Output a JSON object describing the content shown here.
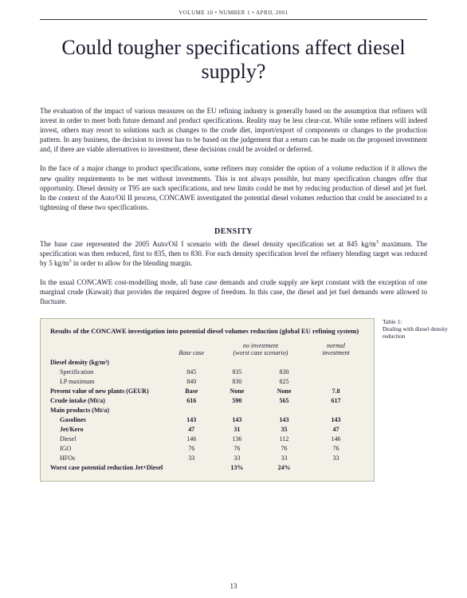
{
  "header": "VOLUME 10 • NUMBER 1 • APRIL 2001",
  "title": "Could tougher specifications affect diesel supply?",
  "para1": "The evaluation of the impact of various measures on the EU refining industry is generally based on the assumption that refiners will invest in order to meet both future demand and product specifications. Reality may be less clear-cut. While some refiners will indeed invest, others may resort to solutions such as changes to the crude diet, import/export of components or changes to the production pattern. In any business, the decision to invest has to be based on the judgement that a return can be made on the proposed investment and, if there are viable alternatives to investment, these decisions could be avoided or deferred.",
  "para2": "In the face of a major change to product specifications, some refiners may consider the option of a volume reduction if it allows the new quality requirements to be met without investments. This is not always possible, but many specification changes offer that opportunity. Diesel density or T95 are such specifications, and new limits could be met by reducing production of diesel and jet fuel. In the context of the Auto/Oil II process, CONCAWE investigated the potential diesel volumes reduction that could be associated to a tightening of these two specifications.",
  "section_head": "DENSITY",
  "para3_a": "The base case represented the 2005 Auto/Oil I scenario with the diesel density specification set at 845 kg/m",
  "para3_b": " maximum. The specification was then reduced, first to 835, then to 830. For each density specification level the refinery blending target was reduced by 5 kg/m",
  "para3_c": " in order to allow for the blending margin.",
  "para4": "In the usual CONCAWE cost-modelling mode, all base case demands and crude supply are kept constant with the exception of one marginal crude (Kuwait) that provides the required degree of freedom. In this case, the diesel and jet fuel demands were allowed to fluctuate.",
  "table": {
    "title": "Results of the CONCAWE investigation into potential diesel volumes reduction (global EU refining system)",
    "col_heads": {
      "c1": "Base case",
      "c2a": "no investment",
      "c2b": "(worst case scenario)",
      "c3a": "normal",
      "c3b": "investment"
    },
    "rows": [
      {
        "label": "Diesel density (kg/m³)",
        "bold": true,
        "vals": [
          "",
          "",
          "",
          ""
        ]
      },
      {
        "label": "Specification",
        "indent": true,
        "vals": [
          "845",
          "835",
          "830",
          ""
        ]
      },
      {
        "label": "LP maximum",
        "indent": true,
        "vals": [
          "840",
          "830",
          "825",
          ""
        ]
      },
      {
        "label": "Present value of new plants (GEUR)",
        "bold": true,
        "vals": [
          "Base",
          "None",
          "None",
          "7.8"
        ]
      },
      {
        "label": "Crude intake (Mt/a)",
        "bold": true,
        "vals": [
          "616",
          "590",
          "565",
          "617"
        ]
      },
      {
        "label": "Main products (Mt/a)",
        "bold": true,
        "vals": [
          "",
          "",
          "",
          ""
        ]
      },
      {
        "label": "Gasolines",
        "indent": true,
        "bold": true,
        "vals": [
          "143",
          "143",
          "143",
          "143"
        ]
      },
      {
        "label": "Jet/Kero",
        "indent": true,
        "bold": true,
        "vals": [
          "47",
          "31",
          "35",
          "47"
        ]
      },
      {
        "label": "Diesel",
        "indent": true,
        "vals": [
          "146",
          "136",
          "112",
          "146"
        ]
      },
      {
        "label": "IGO",
        "indent": true,
        "vals": [
          "76",
          "76",
          "76",
          "76"
        ]
      },
      {
        "label": "HFOs",
        "indent": true,
        "vals": [
          "33",
          "33",
          "33",
          "33"
        ]
      },
      {
        "label": "Worst case potential reduction Jet+Diesel",
        "bold": true,
        "vals": [
          "",
          "13%",
          "24%",
          ""
        ]
      }
    ]
  },
  "caption_a": "Table 1:",
  "caption_b": "Dealing with diesel density reduction",
  "page_num": "13"
}
